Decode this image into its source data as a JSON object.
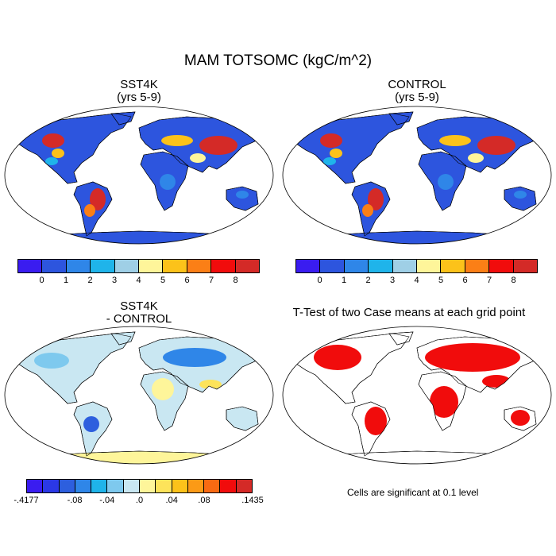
{
  "figure": {
    "title": "MAM TOTSOMC (kgC/m^2)"
  },
  "panels": [
    {
      "id": "sst4k",
      "title_line1": "SST4K",
      "title_line2": "(yrs 5-9)"
    },
    {
      "id": "control",
      "title_line1": "CONTROL",
      "title_line2": "(yrs 5-9)"
    },
    {
      "id": "diff",
      "title_line1": "SST4K",
      "title_line2": "- CONTROL"
    },
    {
      "id": "ttest",
      "title_line1": "T-Test of two Case means at each grid point"
    }
  ],
  "colorbar_main": {
    "colors": [
      "#3a1cf0",
      "#2d55de",
      "#2f86e8",
      "#1fb4ea",
      "#9fcfe6",
      "#fef59a",
      "#fcc21a",
      "#fb7f16",
      "#f10c0c",
      "#d42a27"
    ],
    "tick_labels": [
      "0",
      "1",
      "2",
      "3",
      "4",
      "5",
      "6",
      "7",
      "8"
    ]
  },
  "colorbar_diff": {
    "colors": [
      "#3a1cf0",
      "#2b38e6",
      "#2d5fde",
      "#2f86e8",
      "#1fb4ea",
      "#7ec9ee",
      "#c9e7f2",
      "#fef59a",
      "#fde35a",
      "#fcc21a",
      "#fb9a16",
      "#f86a12",
      "#f10c0c",
      "#d42a27"
    ],
    "tick_labels": [
      "-.4177",
      "-.08",
      "-.04",
      ".0",
      ".04",
      ".08",
      ".1435"
    ]
  },
  "note": "Cells are significant at 0.1 level"
}
